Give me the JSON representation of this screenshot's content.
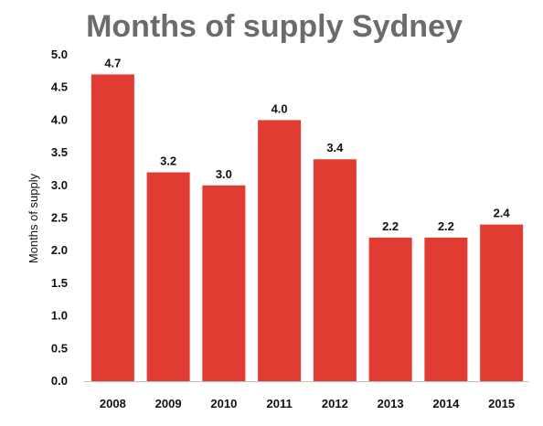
{
  "chart_data": {
    "type": "bar",
    "title": "Months of supply Sydney",
    "xlabel": "",
    "ylabel": "Months of supply",
    "categories": [
      "2008",
      "2009",
      "2010",
      "2011",
      "2012",
      "2013",
      "2014",
      "2015"
    ],
    "values": [
      4.7,
      3.2,
      3.0,
      4.0,
      3.4,
      2.2,
      2.2,
      2.4
    ],
    "data_labels": [
      "4.7",
      "3.2",
      "3.0",
      "4.0",
      "3.4",
      "2.2",
      "2.2",
      "2.4"
    ],
    "ylim": [
      0,
      5
    ],
    "yticks": [
      0,
      0.5,
      1,
      1.5,
      2,
      2.5,
      3,
      3.5,
      4,
      4.5,
      5
    ],
    "ytick_labels": [
      "0.0",
      "0.5",
      "1.0",
      "1.5",
      "2.0",
      "2.5",
      "3.0",
      "3.5",
      "4.0",
      "4.5",
      "5.0"
    ],
    "grid": false,
    "legend": "none",
    "colors": {
      "bar": "#e03c31",
      "axis": "#bfbfbf",
      "title": "#6b6b6b",
      "text": "#111111"
    }
  }
}
